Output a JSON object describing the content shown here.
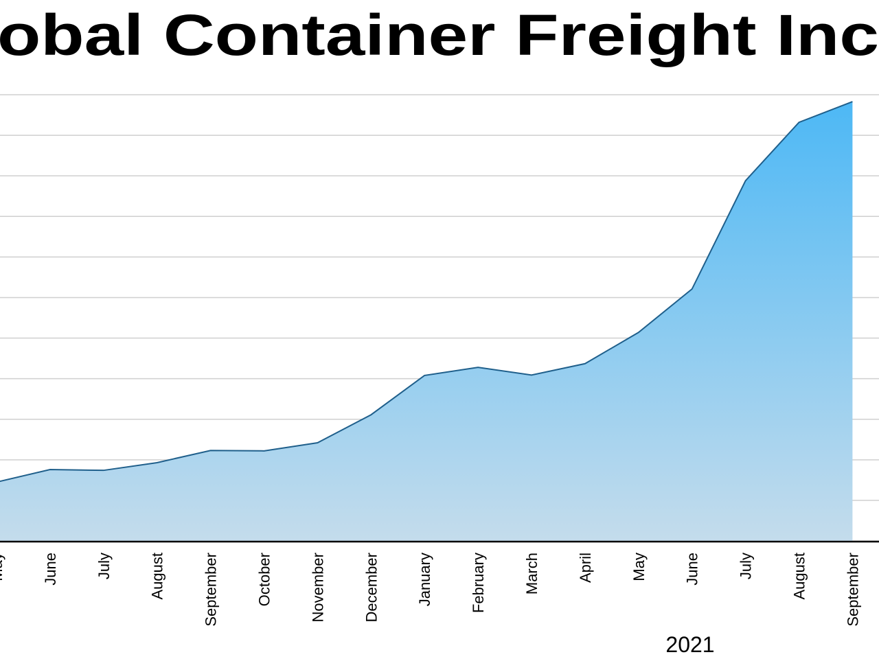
{
  "chart_data": {
    "type": "area",
    "title": "obal Container Freight Inc",
    "year_label": "2021",
    "categories": [
      "May",
      "June",
      "July",
      "August",
      "September",
      "October",
      "November",
      "December",
      "January",
      "February",
      "March",
      "April",
      "May",
      "June",
      "July",
      "August",
      "September"
    ],
    "values": [
      1450,
      1760,
      1740,
      1930,
      2230,
      2220,
      2420,
      3110,
      4080,
      4280,
      4090,
      4370,
      5140,
      6210,
      8880,
      10320,
      10830
    ],
    "color": "#4db8f5",
    "line_color": "#1f5f8b",
    "ylim": [
      0,
      11000
    ],
    "yticks": [
      0,
      1000,
      2000,
      3000,
      4000,
      5000,
      6000,
      7000,
      8000,
      9000,
      10000,
      11000
    ],
    "grid": true
  }
}
